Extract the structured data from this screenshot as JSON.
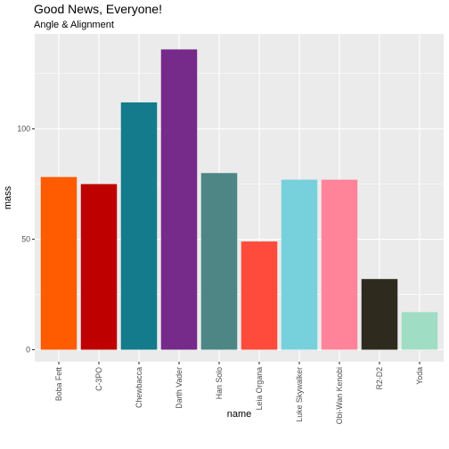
{
  "chart_data": {
    "type": "bar",
    "title": "Good News, Everyone!",
    "subtitle": "Angle & Alignment",
    "xlabel": "name",
    "ylabel": "mass",
    "categories": [
      "Boba Fett",
      "C-3PO",
      "Chewbacca",
      "Darth Vader",
      "Han Solo",
      "Leia Organa",
      "Luke Skywalker",
      "Obi-Wan Kenobi",
      "R2-D2",
      "Yoda"
    ],
    "values": [
      78.2,
      75,
      112,
      136,
      80,
      49,
      77,
      77,
      32,
      17
    ],
    "colors": [
      "#FF5B00",
      "#BE0000",
      "#137B8B",
      "#762A8A",
      "#4D8685",
      "#FF4B3C",
      "#77D1DC",
      "#FF8499",
      "#2E2A1E",
      "#A0DDC5"
    ],
    "ylim": [
      -5.44,
      143.04
    ],
    "yticks": [
      0,
      50,
      100
    ],
    "yminor": [
      25,
      75,
      125
    ],
    "grid": true,
    "legend": "none",
    "panel_background": "#EBEBEB"
  }
}
